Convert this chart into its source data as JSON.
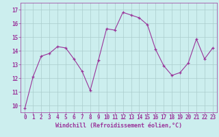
{
  "x": [
    0,
    1,
    2,
    3,
    4,
    5,
    6,
    7,
    8,
    9,
    10,
    11,
    12,
    13,
    14,
    15,
    16,
    17,
    18,
    19,
    20,
    21,
    22,
    23
  ],
  "y": [
    9.8,
    12.1,
    13.6,
    13.8,
    14.3,
    14.2,
    13.4,
    12.5,
    11.1,
    13.3,
    15.6,
    15.5,
    16.8,
    16.6,
    16.4,
    15.9,
    14.1,
    12.9,
    12.2,
    12.4,
    13.1,
    14.85,
    13.4,
    14.2
  ],
  "line_color": "#993399",
  "marker": "+",
  "marker_color": "#993399",
  "bg_color": "#cceeee",
  "grid_color": "#aacccc",
  "xlabel": "Windchill (Refroidissement éolien,°C)",
  "xlabel_color": "#993399",
  "tick_color": "#993399",
  "ylim": [
    9.5,
    17.5
  ],
  "yticks": [
    10,
    11,
    12,
    13,
    14,
    15,
    16,
    17
  ],
  "xlim": [
    -0.5,
    23.5
  ],
  "xticks": [
    0,
    1,
    2,
    3,
    4,
    5,
    6,
    7,
    8,
    9,
    10,
    11,
    12,
    13,
    14,
    15,
    16,
    17,
    18,
    19,
    20,
    21,
    22,
    23
  ],
  "tick_fontsize": 5.5,
  "xlabel_fontsize": 6.0
}
